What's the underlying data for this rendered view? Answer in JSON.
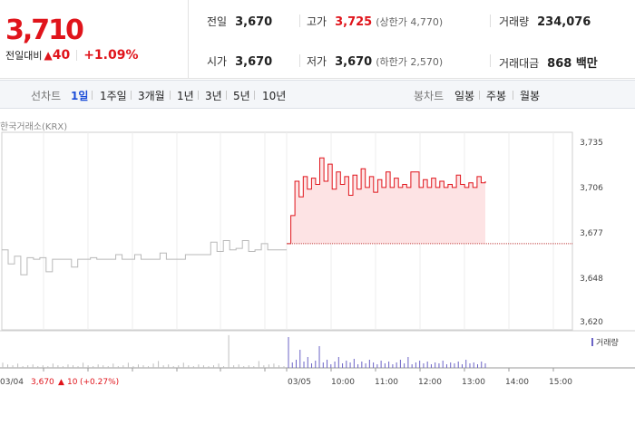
{
  "price": {
    "current": "3,710",
    "change_label": "전일대비",
    "change_arrow": "▲",
    "change_value": "40",
    "change_pct": "+1.09%"
  },
  "stats": {
    "prev_close_label": "전일",
    "prev_close": "3,670",
    "open_label": "시가",
    "open": "3,670",
    "high_label": "고가",
    "high": "3,725",
    "upper_limit": "(상한가 4,770)",
    "low_label": "저가",
    "low": "3,670",
    "lower_limit": "(하한가 2,570)",
    "volume_label": "거래량",
    "volume": "234,076",
    "amount_label": "거래대금",
    "amount": "868 백만"
  },
  "period": {
    "label": "선차트",
    "items": [
      "1일",
      "1주일",
      "3개월",
      "1년",
      "3년",
      "5년",
      "10년"
    ],
    "active": "1일",
    "candle_label": "봉차트",
    "candle_items": [
      "일봉",
      "주봉",
      "월봉"
    ]
  },
  "source": "한국거래소(KRX)",
  "colors": {
    "up": "#e0141b",
    "fill": "#fde3e4",
    "prev_day": "#b8b8b8",
    "volume": "#6b63c6"
  },
  "chart_data": {
    "type": "line",
    "y_ticks": [
      "3,735",
      "3,706",
      "3,677",
      "3,648",
      "3,620"
    ],
    "ylim": [
      3620,
      3735
    ],
    "reference_line": 3670,
    "x_labels": [
      "03/05",
      "10:00",
      "11:00",
      "12:00",
      "13:00",
      "14:00",
      "15:00"
    ],
    "prev_day_label": "03/04",
    "prev_day_close": "3,670",
    "prev_day_change_arrow": "▲",
    "prev_day_change": "10",
    "prev_day_change_pct": "(+0.27%)",
    "volume_legend": "거래량",
    "series": [
      {
        "values": [
          3666,
          3657,
          3662,
          3650,
          3661,
          3660,
          3661,
          3652,
          3660,
          3660,
          3660,
          3655,
          3660,
          3660,
          3661,
          3660,
          3660,
          3660,
          3663,
          3660,
          3660,
          3663,
          3660,
          3660,
          3660,
          3664,
          3660,
          3660,
          3660,
          3663,
          3663,
          3663,
          3663,
          3671,
          3665,
          3672,
          3666,
          3667,
          3672,
          3665,
          3666,
          3670,
          3666,
          3666,
          3666,
          3666
        ]
      },
      {
        "values": [
          3670,
          3688,
          3710,
          3700,
          3713,
          3705,
          3712,
          3708,
          3725,
          3710,
          3721,
          3705,
          3716,
          3708,
          3713,
          3701,
          3714,
          3705,
          3718,
          3706,
          3713,
          3703,
          3711,
          3706,
          3716,
          3706,
          3712,
          3706,
          3708,
          3706,
          3716,
          3716,
          3706,
          3711,
          3706,
          3712,
          3706,
          3710,
          3706,
          3708,
          3706,
          3714,
          3708,
          3706,
          3709,
          3706,
          3713,
          3709,
          3710
        ]
      }
    ]
  }
}
